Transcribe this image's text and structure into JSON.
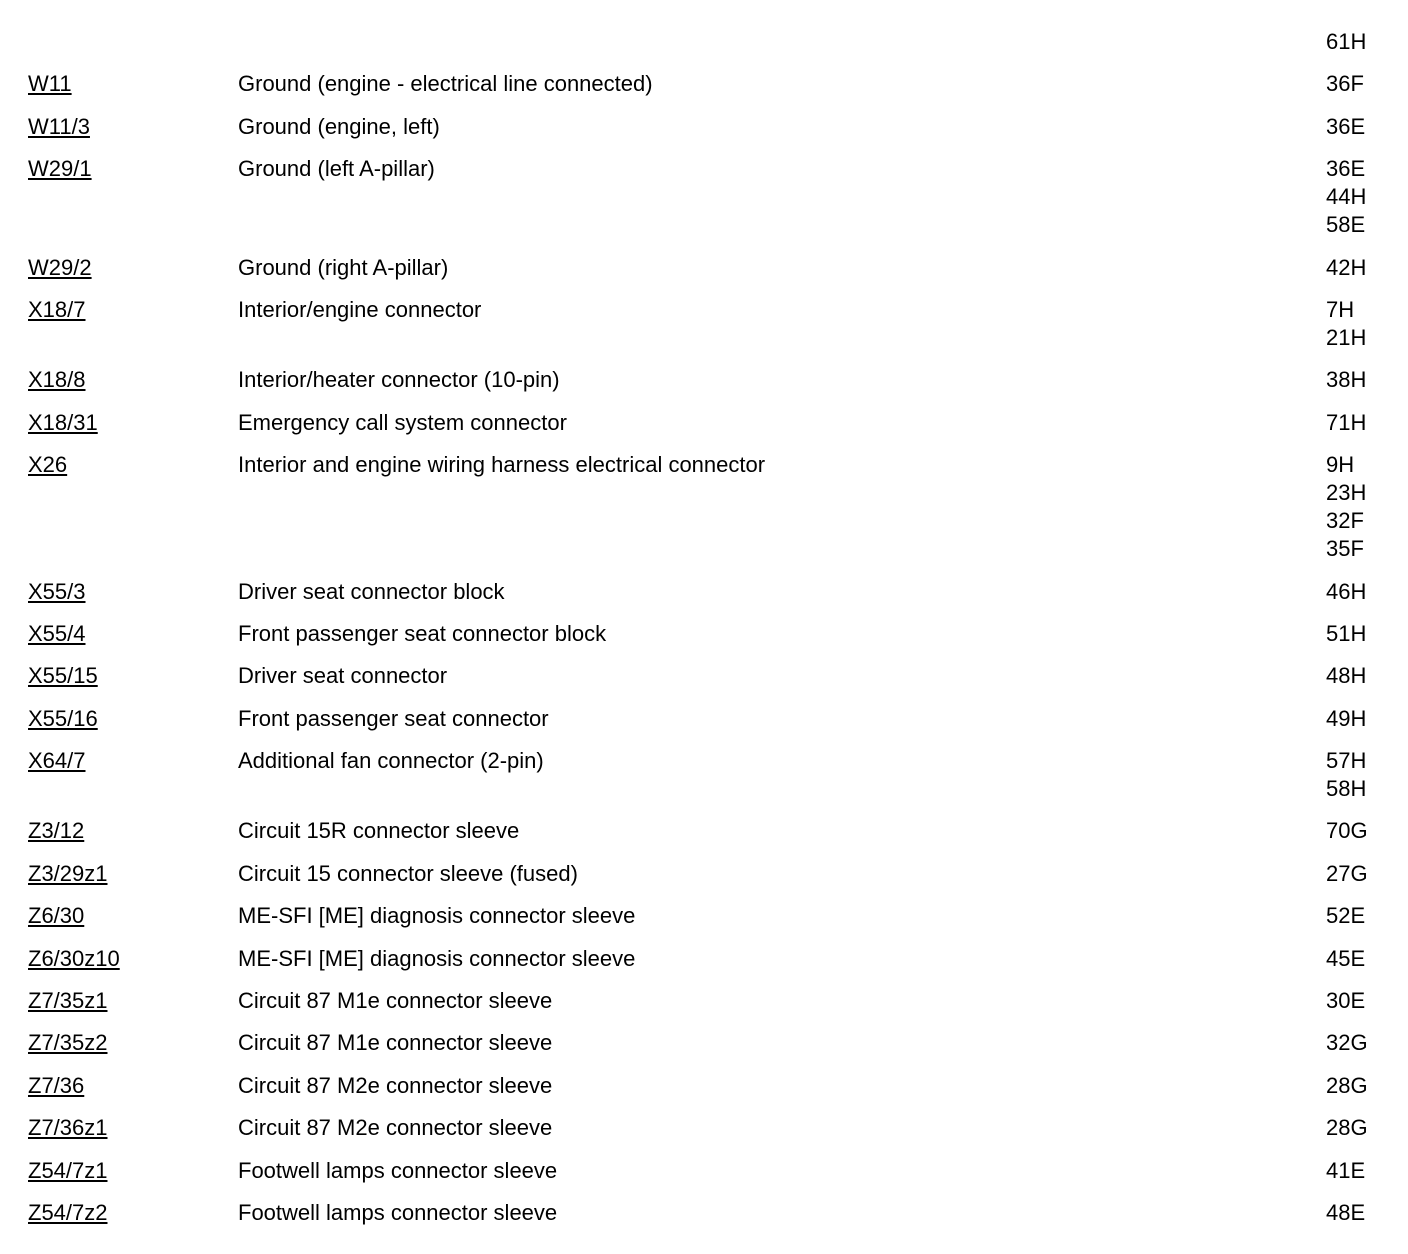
{
  "rows": [
    {
      "code": "",
      "description": "",
      "locations": [
        "61H"
      ]
    },
    {
      "code": "W11",
      "description": "Ground (engine - electrical line connected)",
      "locations": [
        "36F"
      ]
    },
    {
      "code": "W11/3",
      "description": "Ground (engine, left)",
      "locations": [
        "36E"
      ]
    },
    {
      "code": "W29/1",
      "description": "Ground (left A-pillar)",
      "locations": [
        "36E",
        "44H",
        "58E"
      ]
    },
    {
      "code": "W29/2",
      "description": "Ground (right A-pillar)",
      "locations": [
        "42H"
      ]
    },
    {
      "code": "X18/7",
      "description": "Interior/engine connector",
      "locations": [
        "7H",
        "21H"
      ]
    },
    {
      "code": "X18/8",
      "description": "Interior/heater connector (10-pin)",
      "locations": [
        "38H"
      ]
    },
    {
      "code": "X18/31",
      "description": "Emergency call system connector",
      "locations": [
        "71H"
      ]
    },
    {
      "code": "X26",
      "description": "Interior and engine wiring harness electrical connector",
      "locations": [
        "9H",
        "23H",
        "32F",
        "35F"
      ]
    },
    {
      "code": "X55/3",
      "description": "Driver seat connector block",
      "locations": [
        "46H"
      ]
    },
    {
      "code": "X55/4",
      "description": "Front passenger seat connector block",
      "locations": [
        "51H"
      ]
    },
    {
      "code": "X55/15",
      "description": "Driver seat connector",
      "locations": [
        "48H"
      ]
    },
    {
      "code": "X55/16",
      "description": "Front passenger seat connector",
      "locations": [
        "49H"
      ]
    },
    {
      "code": "X64/7",
      "description": "Additional fan connector (2-pin)",
      "locations": [
        "57H",
        "58H"
      ]
    },
    {
      "code": "Z3/12",
      "description": "Circuit 15R connector sleeve",
      "locations": [
        "70G"
      ]
    },
    {
      "code": "Z3/29z1",
      "description": "Circuit 15 connector sleeve (fused)",
      "locations": [
        "27G"
      ]
    },
    {
      "code": "Z6/30",
      "description": "ME-SFI [ME] diagnosis connector sleeve",
      "locations": [
        "52E"
      ]
    },
    {
      "code": "Z6/30z10",
      "description": "ME-SFI [ME] diagnosis connector sleeve",
      "locations": [
        "45E"
      ]
    },
    {
      "code": "Z7/35z1",
      "description": "Circuit 87 M1e connector sleeve",
      "locations": [
        "30E"
      ]
    },
    {
      "code": "Z7/35z2",
      "description": "Circuit 87 M1e connector sleeve",
      "locations": [
        "32G"
      ]
    },
    {
      "code": "Z7/36",
      "description": "Circuit 87 M2e connector sleeve",
      "locations": [
        "28G"
      ]
    },
    {
      "code": "Z7/36z1",
      "description": "Circuit 87 M2e connector sleeve",
      "locations": [
        "28G"
      ]
    },
    {
      "code": "Z54/7z1",
      "description": "Footwell lamps connector sleeve",
      "locations": [
        "41E"
      ]
    },
    {
      "code": "Z54/7z2",
      "description": "Footwell lamps connector sleeve",
      "locations": [
        "48E"
      ]
    }
  ]
}
